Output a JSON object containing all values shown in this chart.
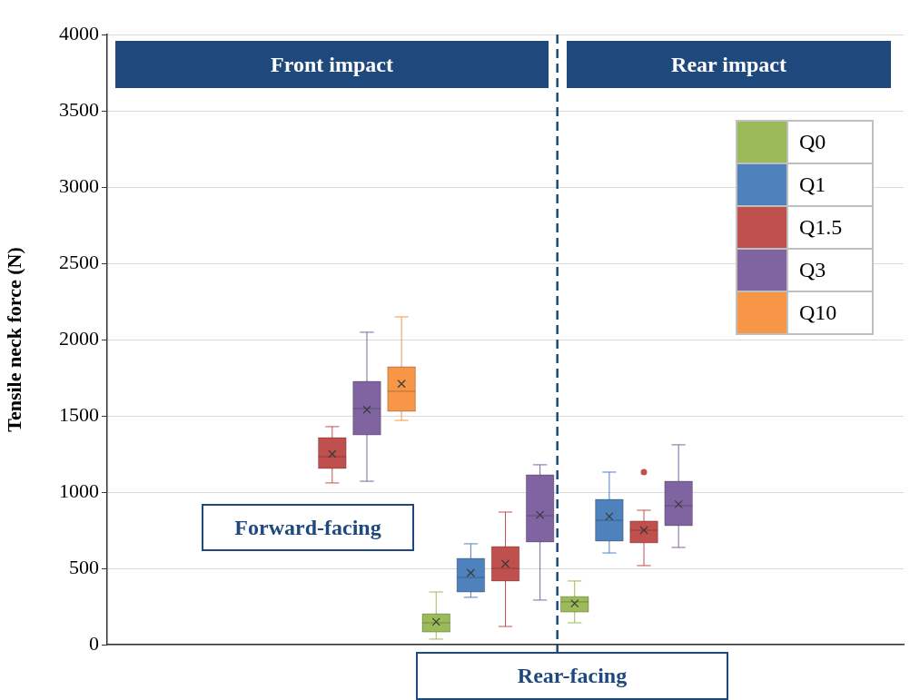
{
  "chart_data": {
    "type": "box",
    "ylabel": "Tensile neck force (N)",
    "categories": [
      null,
      null,
      null,
      null,
      null,
      null,
      null,
      null,
      null,
      null,
      null,
      null,
      null,
      null,
      null,
      null,
      null,
      null,
      null,
      null,
      null,
      null,
      null
    ],
    "ylim": [
      0,
      4000
    ],
    "yticks": [
      0,
      500,
      1000,
      1500,
      2000,
      2500,
      3000,
      3500,
      4000
    ],
    "grid": "y",
    "legend": "top right",
    "marker": "cross",
    "annotations": [
      "Front impact",
      "Rear impact",
      "Forward-facing",
      "Rear-facing"
    ],
    "series": [
      {
        "name": "Q0",
        "color": "#9bbb59",
        "boxes": [
          null,
          null,
          null,
          null,
          null,
          null,
          null,
          null,
          null,
          {
            "low": 36,
            "q1": 83,
            "median": 143,
            "q3": 202,
            "high": 345,
            "mean": 150
          },
          null,
          null,
          null,
          {
            "low": 143,
            "q1": 214,
            "median": 280,
            "q3": 315,
            "high": 417,
            "mean": 270
          },
          null,
          null,
          null,
          null,
          null,
          null,
          null,
          null,
          null
        ]
      },
      {
        "name": "Q1",
        "color": "#4f81bd",
        "boxes": [
          null,
          null,
          null,
          null,
          null,
          null,
          null,
          null,
          null,
          null,
          {
            "low": 310,
            "q1": 345,
            "median": 440,
            "q3": 565,
            "high": 661,
            "mean": 470
          },
          null,
          null,
          null,
          {
            "low": 601,
            "q1": 679,
            "median": 815,
            "q3": 952,
            "high": 1131,
            "mean": 840
          },
          null,
          null,
          null,
          null,
          null,
          null,
          null,
          null
        ]
      },
      {
        "name": "Q1.5",
        "color": "#c0504d",
        "boxes": [
          null,
          null,
          null,
          null,
          null,
          null,
          {
            "low": 1060,
            "q1": 1155,
            "median": 1232,
            "q3": 1357,
            "high": 1429,
            "mean": 1250
          },
          null,
          null,
          null,
          null,
          {
            "low": 119,
            "q1": 417,
            "median": 500,
            "q3": 643,
            "high": 869,
            "mean": 530
          },
          null,
          null,
          null,
          {
            "low": 518,
            "q1": 667,
            "median": 750,
            "q3": 810,
            "high": 881,
            "mean": 750,
            "outliers": [
              1131
            ]
          },
          null,
          null,
          null,
          null,
          null,
          null,
          null
        ]
      },
      {
        "name": "Q3",
        "color": "#8064a2",
        "boxes": [
          null,
          null,
          null,
          null,
          null,
          null,
          null,
          {
            "low": 1071,
            "q1": 1375,
            "median": 1548,
            "q3": 1726,
            "high": 2048,
            "mean": 1540
          },
          null,
          null,
          null,
          null,
          {
            "low": 292,
            "q1": 673,
            "median": 845,
            "q3": 1113,
            "high": 1179,
            "mean": 850
          },
          null,
          null,
          null,
          {
            "low": 637,
            "q1": 780,
            "median": 911,
            "q3": 1071,
            "high": 1310,
            "mean": 920
          },
          null,
          null,
          null,
          null,
          null,
          null
        ]
      },
      {
        "name": "Q10",
        "color": "#f79646",
        "boxes": [
          null,
          null,
          null,
          null,
          null,
          null,
          null,
          null,
          {
            "low": 1470,
            "q1": 1530,
            "median": 1661,
            "q3": 1821,
            "high": 2149,
            "mean": 1710
          },
          null,
          null,
          null,
          null,
          null,
          null,
          null,
          null,
          null,
          null,
          null,
          null,
          null,
          null
        ]
      }
    ]
  }
}
